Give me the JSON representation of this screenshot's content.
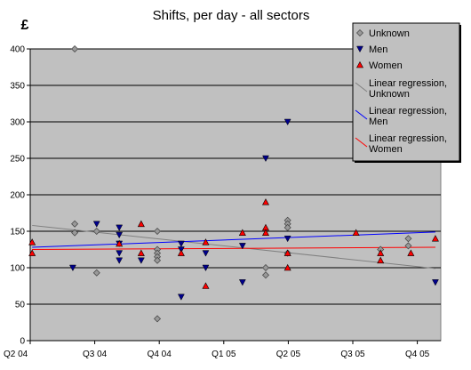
{
  "chart_data": {
    "type": "scatter",
    "title": "Shifts, per day - all sectors",
    "xlabel": "",
    "ylabel": "£",
    "ylim": [
      0,
      400
    ],
    "xlim": [
      "Q2 04",
      "Q4 05+"
    ],
    "x_ticks": [
      "Q2 04",
      "Q3 04",
      "Q4 04",
      "Q1 05",
      "Q2 05",
      "Q3 05",
      "Q4 05"
    ],
    "y_ticks": [
      0,
      50,
      100,
      150,
      200,
      250,
      300,
      350,
      400
    ],
    "grid": "horizontal",
    "legend_position": "top-right",
    "x_units": "quarters after Q2 04",
    "series": [
      {
        "name": "Unknown",
        "marker": "diamond",
        "color": "#999999",
        "points": [
          [
            0.69,
            400
          ],
          [
            0.69,
            160
          ],
          [
            0.69,
            148
          ],
          [
            1.03,
            150
          ],
          [
            1.03,
            93
          ],
          [
            1.97,
            150
          ],
          [
            1.97,
            125
          ],
          [
            1.97,
            120
          ],
          [
            1.97,
            115
          ],
          [
            1.97,
            110
          ],
          [
            1.97,
            30
          ],
          [
            3.65,
            100
          ],
          [
            3.65,
            90
          ],
          [
            3.99,
            165
          ],
          [
            3.99,
            160
          ],
          [
            3.99,
            155
          ],
          [
            3.99,
            120
          ],
          [
            5.43,
            125
          ],
          [
            5.86,
            140
          ],
          [
            5.86,
            130
          ]
        ]
      },
      {
        "name": "Men",
        "marker": "triangle-down",
        "color": "#00008b",
        "points": [
          [
            0.66,
            100
          ],
          [
            1.03,
            160
          ],
          [
            1.38,
            155
          ],
          [
            1.38,
            145
          ],
          [
            1.38,
            133
          ],
          [
            1.38,
            120
          ],
          [
            1.38,
            110
          ],
          [
            1.72,
            110
          ],
          [
            2.34,
            133
          ],
          [
            2.34,
            125
          ],
          [
            2.34,
            60
          ],
          [
            2.72,
            120
          ],
          [
            2.72,
            100
          ],
          [
            3.29,
            130
          ],
          [
            3.29,
            80
          ],
          [
            3.65,
            250
          ],
          [
            3.99,
            300
          ],
          [
            3.99,
            140
          ],
          [
            6.28,
            80
          ]
        ]
      },
      {
        "name": "Women",
        "marker": "triangle-up",
        "color": "#ff0000",
        "points": [
          [
            0.03,
            135
          ],
          [
            0.03,
            120
          ],
          [
            1.38,
            133
          ],
          [
            1.72,
            160
          ],
          [
            1.72,
            120
          ],
          [
            2.34,
            120
          ],
          [
            2.72,
            135
          ],
          [
            2.72,
            75
          ],
          [
            3.29,
            148
          ],
          [
            3.65,
            190
          ],
          [
            3.65,
            155
          ],
          [
            3.65,
            148
          ],
          [
            3.99,
            120
          ],
          [
            3.99,
            100
          ],
          [
            5.05,
            148
          ],
          [
            5.43,
            120
          ],
          [
            5.43,
            110
          ],
          [
            5.9,
            120
          ],
          [
            6.28,
            140
          ]
        ]
      }
    ],
    "regressions": [
      {
        "name": "Linear regression,\nUnknown",
        "color": "#808080",
        "x": [
          0.03,
          6.28
        ],
        "y": [
          158,
          99
        ]
      },
      {
        "name": "Linear regression,\nMen",
        "color": "#0000ff",
        "x": [
          0.03,
          6.28
        ],
        "y": [
          128,
          149
        ]
      },
      {
        "name": "Linear regression,\nWomen",
        "color": "#ff0000",
        "x": [
          0.03,
          6.28
        ],
        "y": [
          125,
          128
        ]
      }
    ]
  }
}
